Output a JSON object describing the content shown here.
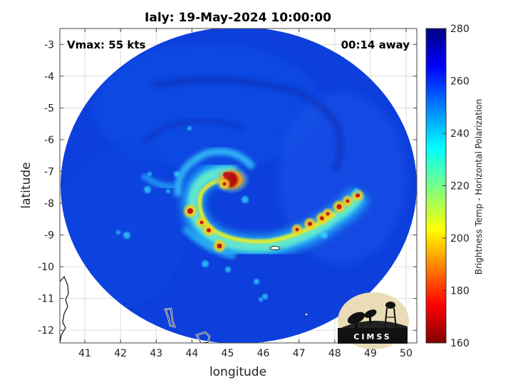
{
  "title": "Ialy: 19-May-2024 10:00:00",
  "annotations": {
    "vmax": "Vmax: 55 kts",
    "time_away": "00:14 away"
  },
  "axes": {
    "xlabel": "longitude",
    "ylabel": "latitude",
    "xticks": [
      "41",
      "42",
      "43",
      "44",
      "45",
      "46",
      "47",
      "48",
      "49",
      "50"
    ],
    "yticks": [
      "-3",
      "-4",
      "-5",
      "-6",
      "-7",
      "-8",
      "-9",
      "-10",
      "-11",
      "-12"
    ],
    "xlim": [
      40.3,
      50.3
    ],
    "ylim": [
      -12.4,
      -2.5
    ],
    "grid": true
  },
  "colorbar": {
    "label": "Brightness Temp - Horizontal Polarization",
    "ticks": [
      "280",
      "260",
      "240",
      "220",
      "200",
      "180",
      "160"
    ],
    "range": [
      160,
      280
    ],
    "colormap": "jet",
    "placement": "right"
  },
  "logo": {
    "text": "CIMSS"
  },
  "colors": {
    "background_cold": "#0a3ad8",
    "core_warm": "#d01818",
    "band_yellow": "#f4e21a",
    "coast": "#ffffff"
  }
}
